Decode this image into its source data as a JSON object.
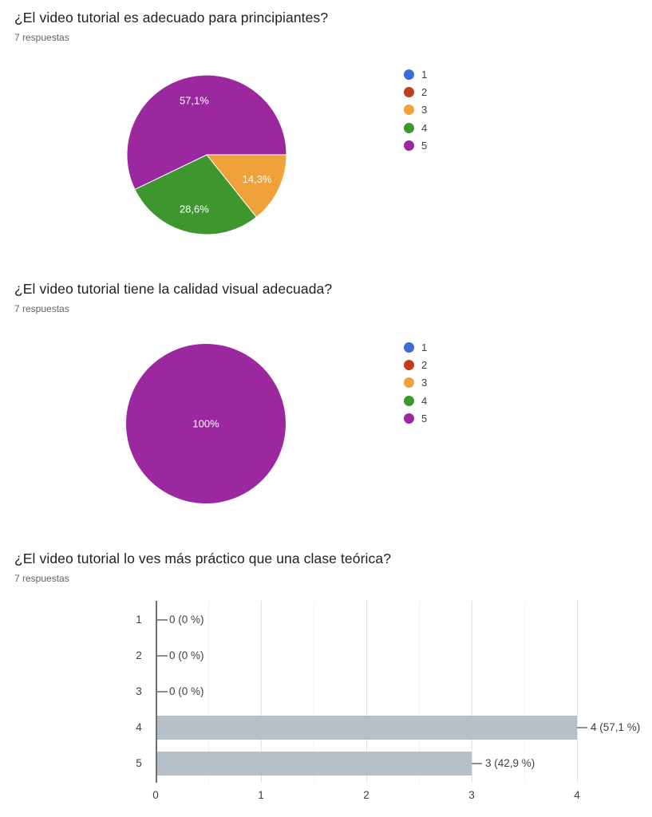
{
  "chart_data": [
    {
      "type": "pie",
      "title": "¿El video tutorial es adecuado para principiantes?",
      "subtitle": "7 respuestas",
      "total_responses": 7,
      "legend_position": "right",
      "legend": [
        {
          "label": "1",
          "color": "#3b6bd6"
        },
        {
          "label": "2",
          "color": "#c23c1c"
        },
        {
          "label": "3",
          "color": "#f0a13a"
        },
        {
          "label": "4",
          "color": "#3e962f"
        },
        {
          "label": "5",
          "color": "#9c28a0"
        }
      ],
      "slices": [
        {
          "label": "1",
          "value": 0,
          "color": "#3b6bd6",
          "pct_label": ""
        },
        {
          "label": "2",
          "value": 0,
          "color": "#c23c1c",
          "pct_label": ""
        },
        {
          "label": "3",
          "value": 1,
          "color": "#f0a13a",
          "pct_label": "14,3%"
        },
        {
          "label": "4",
          "value": 2,
          "color": "#3e962f",
          "pct_label": "28,6%"
        },
        {
          "label": "5",
          "value": 4,
          "color": "#9c28a0",
          "pct_label": "57,1%"
        }
      ],
      "start_angle_deg": 0
    },
    {
      "type": "pie",
      "title": "¿El video tutorial tiene la calidad visual adecuada?",
      "subtitle": "7 respuestas",
      "total_responses": 7,
      "legend_position": "right",
      "legend": [
        {
          "label": "1",
          "color": "#3b6bd6"
        },
        {
          "label": "2",
          "color": "#c23c1c"
        },
        {
          "label": "3",
          "color": "#f0a13a"
        },
        {
          "label": "4",
          "color": "#3e962f"
        },
        {
          "label": "5",
          "color": "#9c28a0"
        }
      ],
      "slices": [
        {
          "label": "1",
          "value": 0,
          "color": "#3b6bd6",
          "pct_label": ""
        },
        {
          "label": "2",
          "value": 0,
          "color": "#c23c1c",
          "pct_label": ""
        },
        {
          "label": "3",
          "value": 0,
          "color": "#f0a13a",
          "pct_label": ""
        },
        {
          "label": "4",
          "value": 0,
          "color": "#3e962f",
          "pct_label": ""
        },
        {
          "label": "5",
          "value": 7,
          "color": "#9c28a0",
          "pct_label": "100%"
        }
      ],
      "start_angle_deg": 0
    },
    {
      "type": "bar",
      "title": "¿El video tutorial lo ves más práctico que una clase teórica?",
      "subtitle": "7 respuestas",
      "total_responses": 7,
      "orientation": "horizontal",
      "categories": [
        "1",
        "2",
        "3",
        "4",
        "5"
      ],
      "values": [
        0,
        0,
        0,
        4,
        3
      ],
      "value_labels": [
        "0 (0 %)",
        "0 (0 %)",
        "0 (0 %)",
        "4 (57,1 %)",
        "3 (42,9 %)"
      ],
      "x_ticks": [
        "0",
        "1",
        "2",
        "3",
        "4"
      ],
      "xlim": [
        0,
        4
      ],
      "grid": true,
      "bar_color": "#b5c0c9"
    }
  ]
}
